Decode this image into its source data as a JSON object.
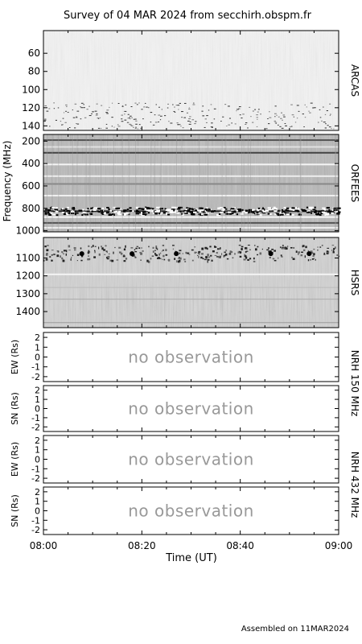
{
  "title": "Survey of 04 MAR 2024 from secchirh.obspm.fr",
  "footer": "Assembled on 11MAR2024",
  "colors": {
    "frame": "#000000",
    "no_obs": "#999999",
    "bg": "#ffffff"
  },
  "chart_data": {
    "type": "heatmap",
    "xlabel": "Time (UT)",
    "x_ticks": [
      "08:00",
      "08:20",
      "08:40",
      "09:00"
    ],
    "xlim": [
      "08:00",
      "09:00"
    ],
    "shared_ylabel": "Frequency (MHz)",
    "panels": [
      {
        "name": "ARCAS",
        "kind": "spectrogram",
        "ylim": [
          35,
          145
        ],
        "y_ticks": [
          "60",
          "80",
          "100",
          "120",
          "140"
        ]
      },
      {
        "name": "ORFEES",
        "kind": "spectrogram",
        "ylim": [
          140,
          1010
        ],
        "y_ticks": [
          "200",
          "400",
          "600",
          "800",
          "1000"
        ]
      },
      {
        "name": "HSRS",
        "kind": "spectrogram",
        "ylim": [
          985,
          1490
        ],
        "y_ticks": [
          "1100",
          "1200",
          "1300",
          "1400"
        ]
      },
      {
        "ylabel": "EW (Rs)",
        "kind": "no_obs",
        "ylim": [
          -2.5,
          2.5
        ],
        "y_ticks": [
          "2",
          "1",
          "0",
          "-1",
          "-2"
        ],
        "message": "no observation"
      },
      {
        "ylabel": "SN (Rs)",
        "kind": "no_obs",
        "ylim": [
          -2.5,
          2.5
        ],
        "y_ticks": [
          "2",
          "1",
          "0",
          "-1",
          "-2"
        ],
        "message": "no observation"
      },
      {
        "ylabel": "EW (Rs)",
        "kind": "no_obs",
        "ylim": [
          -2.5,
          2.5
        ],
        "y_ticks": [
          "2",
          "1",
          "0",
          "-1",
          "-2"
        ],
        "message": "no observation"
      },
      {
        "ylabel": "SN (Rs)",
        "kind": "no_obs",
        "ylim": [
          -2.5,
          2.5
        ],
        "y_ticks": [
          "2",
          "1",
          "0",
          "-1",
          "-2"
        ],
        "message": "no observation"
      }
    ],
    "side_labels": [
      "NRH 150 MHz",
      "NRH 432 MHz"
    ]
  }
}
